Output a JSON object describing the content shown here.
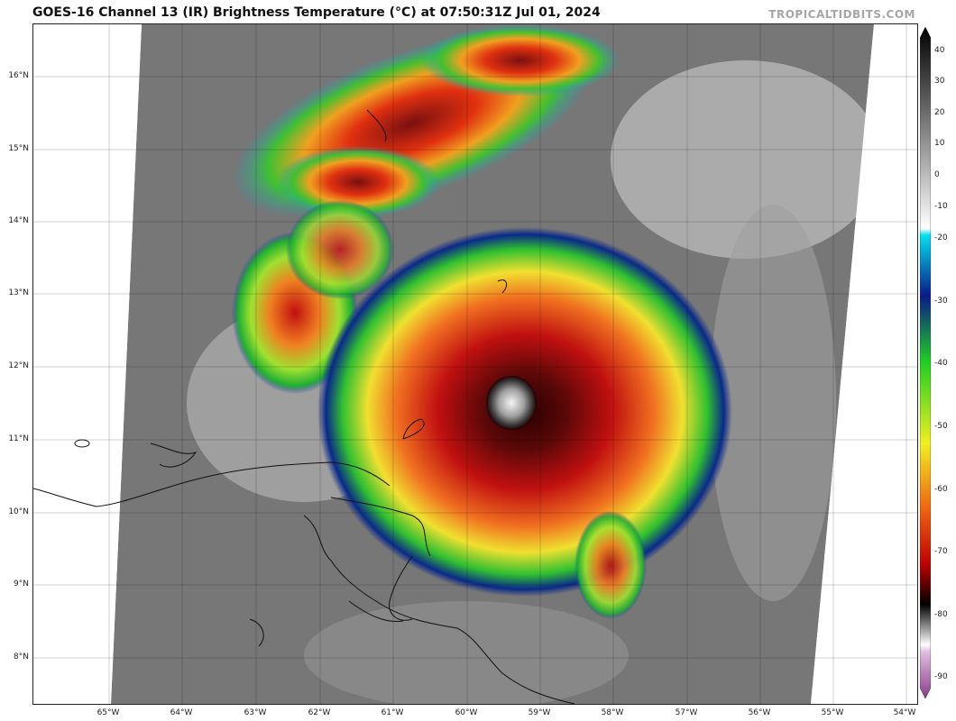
{
  "header": {
    "title": "GOES-16 Channel 13 (IR) Brightness Temperature (°C) at 07:50:31Z Jul 01, 2024",
    "credit": "TROPICALTIDBITS.COM"
  },
  "axes": {
    "lat_labels": [
      "16°N",
      "15°N",
      "14°N",
      "13°N",
      "12°N",
      "11°N",
      "10°N",
      "9°N",
      "8°N"
    ],
    "lon_labels": [
      "65°W",
      "64°W",
      "63°W",
      "62°W",
      "61°W",
      "60°W",
      "59°W",
      "58°W",
      "57°W",
      "56°W",
      "55°W",
      "54°W"
    ]
  },
  "colorbar": {
    "ticks": [
      "40",
      "30",
      "20",
      "10",
      "0",
      "-10",
      "-20",
      "-30",
      "-40",
      "-50",
      "-60",
      "-70",
      "-80",
      "-90"
    ],
    "colors": {
      "warm_black": "#1a1a1a",
      "cloud_white": "#e6e6e6",
      "cyan": "#00d0e0",
      "blue": "#0a2a8a",
      "green": "#20c020",
      "yellow": "#f0e030",
      "orange": "#f08020",
      "red": "#d01010",
      "dark_red": "#5a0808",
      "pink": "#c080b0"
    }
  },
  "imagery": {
    "storm_center": "11.5°N 59.6°W",
    "eye": "clear eye with white inner ring"
  }
}
